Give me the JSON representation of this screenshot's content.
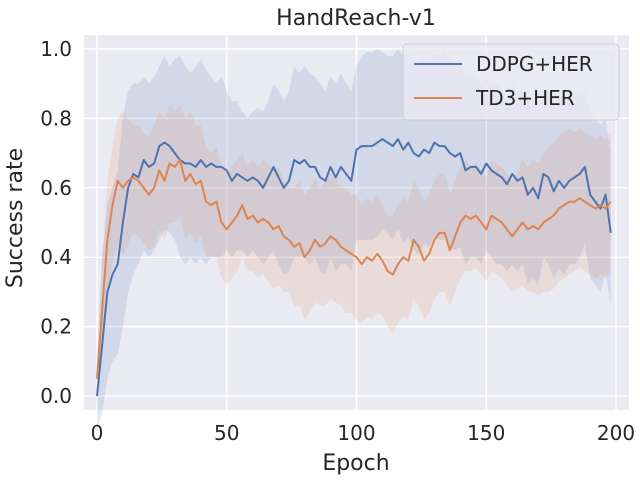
{
  "chart_data": {
    "type": "line",
    "title": "HandReach-v1",
    "xlabel": "Epoch",
    "ylabel": "Success rate",
    "xlim": [
      -5,
      205
    ],
    "ylim": [
      -0.04,
      1.04
    ],
    "xticks": [
      0,
      50,
      100,
      150,
      200
    ],
    "xtick_labels": [
      "0",
      "50",
      "100",
      "150",
      "200"
    ],
    "yticks": [
      0.0,
      0.2,
      0.4,
      0.6,
      0.8,
      1.0
    ],
    "ytick_labels": [
      "0.0",
      "0.2",
      "0.4",
      "0.6",
      "0.8",
      "1.0"
    ],
    "grid": true,
    "legend_position": "top-right",
    "series": [
      {
        "name": "DDPG+HER",
        "color": "#4c72b0",
        "x": [
          0,
          2,
          4,
          6,
          8,
          10,
          12,
          14,
          16,
          18,
          20,
          22,
          24,
          26,
          28,
          30,
          32,
          34,
          36,
          38,
          40,
          42,
          44,
          46,
          48,
          50,
          52,
          54,
          56,
          58,
          60,
          62,
          64,
          66,
          68,
          70,
          72,
          74,
          76,
          78,
          80,
          82,
          84,
          86,
          88,
          90,
          92,
          94,
          96,
          98,
          100,
          102,
          104,
          106,
          108,
          110,
          112,
          114,
          116,
          118,
          120,
          122,
          124,
          126,
          128,
          130,
          132,
          134,
          136,
          138,
          140,
          142,
          144,
          146,
          148,
          150,
          152,
          154,
          156,
          158,
          160,
          162,
          164,
          166,
          168,
          170,
          172,
          174,
          176,
          178,
          180,
          182,
          184,
          186,
          188,
          190,
          192,
          194,
          196,
          198
        ],
        "y": [
          0.0,
          0.15,
          0.3,
          0.35,
          0.38,
          0.5,
          0.6,
          0.64,
          0.63,
          0.68,
          0.66,
          0.67,
          0.72,
          0.73,
          0.72,
          0.7,
          0.68,
          0.67,
          0.67,
          0.66,
          0.68,
          0.66,
          0.67,
          0.66,
          0.66,
          0.65,
          0.62,
          0.64,
          0.63,
          0.62,
          0.63,
          0.62,
          0.6,
          0.63,
          0.66,
          0.63,
          0.6,
          0.62,
          0.68,
          0.67,
          0.68,
          0.66,
          0.66,
          0.63,
          0.62,
          0.66,
          0.63,
          0.66,
          0.64,
          0.62,
          0.71,
          0.72,
          0.72,
          0.72,
          0.73,
          0.74,
          0.73,
          0.72,
          0.74,
          0.71,
          0.73,
          0.7,
          0.69,
          0.71,
          0.7,
          0.73,
          0.72,
          0.72,
          0.7,
          0.69,
          0.7,
          0.65,
          0.66,
          0.66,
          0.64,
          0.67,
          0.65,
          0.64,
          0.63,
          0.61,
          0.64,
          0.62,
          0.63,
          0.58,
          0.6,
          0.57,
          0.64,
          0.63,
          0.59,
          0.62,
          0.6,
          0.62,
          0.63,
          0.64,
          0.66,
          0.58,
          0.56,
          0.54,
          0.58,
          0.47
        ],
        "y_upper": [
          0.1,
          0.4,
          0.55,
          0.6,
          0.65,
          0.8,
          0.88,
          0.9,
          0.9,
          0.92,
          0.9,
          0.92,
          0.95,
          0.98,
          0.95,
          0.97,
          0.98,
          0.95,
          0.93,
          0.95,
          0.97,
          0.94,
          0.92,
          0.9,
          0.92,
          0.88,
          0.85,
          0.85,
          0.82,
          0.8,
          0.82,
          0.83,
          0.82,
          0.85,
          0.9,
          0.88,
          0.85,
          0.88,
          0.95,
          0.93,
          0.95,
          0.93,
          0.92,
          0.9,
          0.88,
          0.92,
          0.9,
          0.93,
          0.9,
          0.88,
          0.95,
          0.98,
          0.99,
          0.99,
          1.0,
          0.99,
          0.98,
          0.98,
          1.0,
          0.98,
          0.99,
          0.97,
          0.97,
          0.98,
          0.97,
          0.99,
          0.98,
          0.99,
          0.97,
          0.95,
          0.97,
          0.92,
          0.93,
          0.92,
          0.9,
          0.92,
          0.9,
          0.9,
          0.88,
          0.85,
          0.9,
          0.88,
          0.88,
          0.85,
          0.86,
          0.83,
          0.88,
          0.88,
          0.84,
          0.87,
          0.85,
          0.86,
          0.88,
          0.87,
          0.88,
          0.82,
          0.8,
          0.78,
          0.8,
          0.7
        ],
        "y_lower": [
          -0.1,
          -0.05,
          0.05,
          0.1,
          0.12,
          0.2,
          0.3,
          0.35,
          0.38,
          0.42,
          0.4,
          0.42,
          0.45,
          0.48,
          0.47,
          0.45,
          0.4,
          0.38,
          0.4,
          0.38,
          0.4,
          0.38,
          0.4,
          0.4,
          0.4,
          0.42,
          0.4,
          0.42,
          0.42,
          0.4,
          0.42,
          0.4,
          0.38,
          0.4,
          0.42,
          0.38,
          0.35,
          0.36,
          0.4,
          0.4,
          0.4,
          0.38,
          0.4,
          0.36,
          0.35,
          0.4,
          0.36,
          0.38,
          0.38,
          0.36,
          0.45,
          0.45,
          0.45,
          0.45,
          0.46,
          0.48,
          0.47,
          0.45,
          0.48,
          0.44,
          0.46,
          0.42,
          0.41,
          0.44,
          0.43,
          0.46,
          0.45,
          0.45,
          0.43,
          0.42,
          0.43,
          0.38,
          0.4,
          0.4,
          0.38,
          0.42,
          0.4,
          0.38,
          0.38,
          0.36,
          0.38,
          0.36,
          0.38,
          0.32,
          0.34,
          0.32,
          0.4,
          0.38,
          0.34,
          0.37,
          0.35,
          0.38,
          0.38,
          0.4,
          0.44,
          0.34,
          0.32,
          0.3,
          0.36,
          0.26
        ]
      },
      {
        "name": "TD3+HER",
        "color": "#dd8452",
        "x": [
          0,
          2,
          4,
          6,
          8,
          10,
          12,
          14,
          16,
          18,
          20,
          22,
          24,
          26,
          28,
          30,
          32,
          34,
          36,
          38,
          40,
          42,
          44,
          46,
          48,
          50,
          52,
          54,
          56,
          58,
          60,
          62,
          64,
          66,
          68,
          70,
          72,
          74,
          76,
          78,
          80,
          82,
          84,
          86,
          88,
          90,
          92,
          94,
          96,
          98,
          100,
          102,
          104,
          106,
          108,
          110,
          112,
          114,
          116,
          118,
          120,
          122,
          124,
          126,
          128,
          130,
          132,
          134,
          136,
          138,
          140,
          142,
          144,
          146,
          148,
          150,
          152,
          154,
          156,
          158,
          160,
          162,
          164,
          166,
          168,
          170,
          172,
          174,
          176,
          178,
          180,
          182,
          184,
          186,
          188,
          190,
          192,
          194,
          196,
          198
        ],
        "y": [
          0.05,
          0.25,
          0.45,
          0.55,
          0.62,
          0.6,
          0.62,
          0.63,
          0.62,
          0.6,
          0.58,
          0.6,
          0.65,
          0.62,
          0.67,
          0.66,
          0.68,
          0.62,
          0.64,
          0.61,
          0.62,
          0.56,
          0.55,
          0.56,
          0.5,
          0.48,
          0.5,
          0.52,
          0.55,
          0.51,
          0.52,
          0.5,
          0.51,
          0.5,
          0.48,
          0.49,
          0.46,
          0.45,
          0.43,
          0.44,
          0.4,
          0.42,
          0.45,
          0.43,
          0.44,
          0.46,
          0.45,
          0.43,
          0.42,
          0.41,
          0.4,
          0.38,
          0.4,
          0.39,
          0.41,
          0.39,
          0.36,
          0.35,
          0.38,
          0.4,
          0.39,
          0.45,
          0.43,
          0.39,
          0.41,
          0.45,
          0.47,
          0.47,
          0.42,
          0.46,
          0.5,
          0.52,
          0.51,
          0.52,
          0.5,
          0.48,
          0.52,
          0.51,
          0.5,
          0.48,
          0.46,
          0.48,
          0.5,
          0.48,
          0.49,
          0.48,
          0.5,
          0.51,
          0.52,
          0.54,
          0.55,
          0.56,
          0.56,
          0.57,
          0.56,
          0.55,
          0.54,
          0.55,
          0.54,
          0.56
        ],
        "y_upper": [
          0.1,
          0.4,
          0.62,
          0.72,
          0.8,
          0.82,
          0.8,
          0.78,
          0.78,
          0.76,
          0.75,
          0.78,
          0.82,
          0.8,
          0.84,
          0.82,
          0.84,
          0.8,
          0.82,
          0.78,
          0.78,
          0.72,
          0.7,
          0.72,
          0.66,
          0.64,
          0.66,
          0.68,
          0.7,
          0.66,
          0.68,
          0.66,
          0.68,
          0.67,
          0.65,
          0.66,
          0.62,
          0.6,
          0.6,
          0.62,
          0.58,
          0.6,
          0.63,
          0.6,
          0.62,
          0.64,
          0.63,
          0.6,
          0.6,
          0.58,
          0.58,
          0.55,
          0.57,
          0.56,
          0.58,
          0.55,
          0.52,
          0.52,
          0.55,
          0.57,
          0.56,
          0.62,
          0.6,
          0.56,
          0.58,
          0.62,
          0.64,
          0.64,
          0.58,
          0.62,
          0.66,
          0.68,
          0.66,
          0.67,
          0.65,
          0.63,
          0.68,
          0.67,
          0.66,
          0.64,
          0.62,
          0.65,
          0.68,
          0.66,
          0.68,
          0.67,
          0.7,
          0.72,
          0.73,
          0.75,
          0.76,
          0.77,
          0.76,
          0.77,
          0.76,
          0.75,
          0.74,
          0.75,
          0.74,
          0.76
        ],
        "y_lower": [
          0.0,
          0.1,
          0.28,
          0.38,
          0.44,
          0.4,
          0.44,
          0.47,
          0.46,
          0.44,
          0.42,
          0.43,
          0.48,
          0.45,
          0.5,
          0.5,
          0.52,
          0.45,
          0.47,
          0.44,
          0.46,
          0.4,
          0.4,
          0.4,
          0.34,
          0.32,
          0.34,
          0.36,
          0.4,
          0.36,
          0.36,
          0.34,
          0.35,
          0.33,
          0.31,
          0.32,
          0.3,
          0.3,
          0.26,
          0.26,
          0.22,
          0.24,
          0.27,
          0.26,
          0.26,
          0.28,
          0.27,
          0.26,
          0.24,
          0.24,
          0.22,
          0.21,
          0.23,
          0.22,
          0.24,
          0.23,
          0.2,
          0.18,
          0.21,
          0.23,
          0.22,
          0.28,
          0.26,
          0.22,
          0.24,
          0.28,
          0.3,
          0.3,
          0.26,
          0.3,
          0.34,
          0.36,
          0.36,
          0.37,
          0.35,
          0.33,
          0.36,
          0.35,
          0.34,
          0.32,
          0.3,
          0.31,
          0.32,
          0.3,
          0.3,
          0.29,
          0.3,
          0.3,
          0.31,
          0.33,
          0.34,
          0.35,
          0.36,
          0.37,
          0.36,
          0.35,
          0.34,
          0.35,
          0.34,
          0.36
        ]
      }
    ]
  }
}
